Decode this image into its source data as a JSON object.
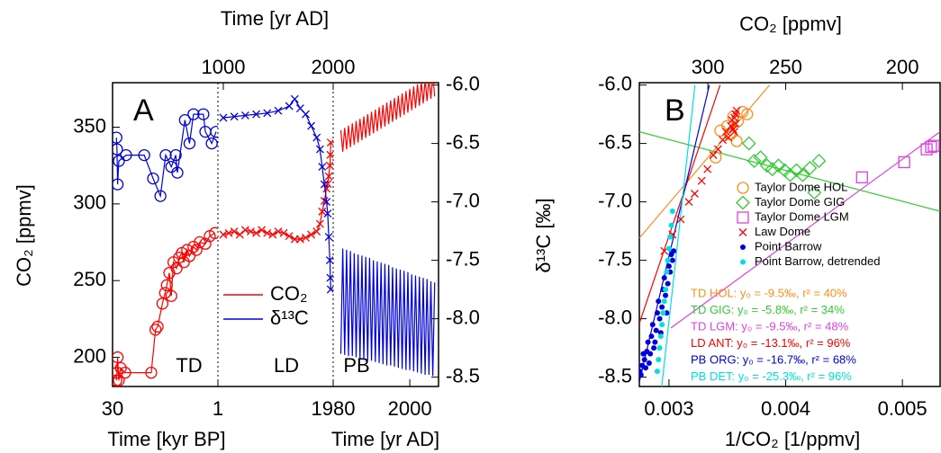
{
  "chart_data": [
    {
      "type": "line",
      "panel_label": "A",
      "ylabel": "CO₂ [ppmv]",
      "ylim": [
        181,
        379
      ],
      "yticks": [
        200,
        250,
        300,
        350
      ],
      "y2lim": [
        -8.58,
        -5.98
      ],
      "y2ticks": [
        {
          "value": -6,
          "label": "-6.0"
        },
        -6.5,
        {
          "value": -7,
          "label": "-7.0"
        },
        -7.5,
        {
          "value": -8,
          "label": "-8.0"
        },
        -8.5
      ],
      "panels": [
        {
          "label": "TD",
          "xscale": "log",
          "xlim": [
            30,
            1
          ],
          "xticks": [
            30,
            1
          ],
          "xlabel": "Time [kyr BP]"
        },
        {
          "label": "LD",
          "xscale": "linear",
          "xlim": [
            951,
            2000
          ],
          "xticks_top": [
            1000,
            2000
          ],
          "xlabel_top": "Time [yr AD]"
        },
        {
          "label": "PB",
          "xscale": "linear",
          "xlim": [
            1980,
            2007.5
          ],
          "xticks": [
            1980,
            2000
          ],
          "xlabel": "Time [yr AD]"
        }
      ],
      "series": [
        {
          "name": "CO₂",
          "color": "#ff0000",
          "axis": "y",
          "markers": [
            "circle",
            "x",
            "none"
          ],
          "data": [
            {
              "x": [
                26.5,
                26,
                25.5,
                24.5,
                23,
                20,
                8.6,
                7.5,
                7,
                6,
                5.5,
                5.2,
                4.8,
                4.5,
                4.2,
                3.8,
                3.5,
                3.2,
                3,
                2.7,
                2.5,
                2.2,
                2,
                1.8,
                1.5,
                1.3,
                1.1
              ],
              "values": [
                185,
                190,
                200,
                185,
                193,
                190,
                190,
                218,
                220,
                235,
                242,
                247,
                255,
                240,
                262,
                258,
                265,
                268,
                262,
                270,
                266,
                272,
                270,
                275,
                274,
                279,
                281
              ]
            },
            {
              "x": [
                1000,
                1050,
                1100,
                1150,
                1200,
                1250,
                1300,
                1350,
                1400,
                1450,
                1500,
                1550,
                1600,
                1650,
                1700,
                1750,
                1800,
                1850,
                1880,
                1900,
                1920,
                1940,
                1950,
                1960,
                1970,
                1975,
                1978
              ],
              "values": [
                280,
                281,
                282,
                280,
                283,
                282,
                281,
                283,
                281,
                280,
                282,
                281,
                279,
                277,
                277,
                278,
                280,
                282,
                287,
                295,
                302,
                310,
                313,
                318,
                325,
                332,
                340
              ]
            },
            {
              "x": [
                1982,
                1982.5,
                1983,
                1983.5,
                1984,
                1984.5,
                1985,
                1985.5,
                1986,
                1986.5,
                1987,
                1987.5,
                1988,
                1988.5,
                1989,
                1989.5,
                1990,
                1990.5,
                1991,
                1991.5,
                1992,
                1992.5,
                1993,
                1993.5,
                1994,
                1994.5,
                1995,
                1995.5,
                1996,
                1996.5,
                1997,
                1997.5,
                1998,
                1998.5,
                1999,
                1999.5,
                2000,
                2000.5,
                2001,
                2001.5,
                2002,
                2002.5,
                2003,
                2003.5,
                2004,
                2004.5,
                2005,
                2005.5,
                2006,
                2006.5
              ],
              "values": [
                348,
                334,
                349.5,
                335.5,
                351,
                337,
                352.5,
                338.5,
                354,
                340,
                355.5,
                341.5,
                357,
                343,
                358.5,
                344.5,
                360,
                346,
                361.5,
                347.5,
                363,
                349,
                364.5,
                350.5,
                366,
                352,
                367.5,
                353.5,
                369,
                355,
                370.5,
                356.5,
                372,
                358,
                373.5,
                359.5,
                375,
                361,
                376.5,
                362.5,
                378,
                364,
                379.5,
                365.5,
                381,
                367,
                382.5,
                368.5,
                384,
                370
              ]
            }
          ]
        },
        {
          "name": "δ¹³C",
          "color": "#0000dd",
          "axis": "y2",
          "markers": [
            "circle",
            "x",
            "none"
          ],
          "data": [
            {
              "x": [
                26.5,
                26,
                25.5,
                24.5,
                19.4,
                10.8,
                8.1,
                6.4,
                5.4,
                4.5,
                3.9,
                3.7,
                2.9,
                2.5,
                2.2,
                1.6,
                1.5,
                1.22,
                1.06
              ],
              "values": [
                -6.45,
                -6.55,
                -6.85,
                -6.65,
                -6.6,
                -6.6,
                -6.8,
                -6.95,
                -6.6,
                -6.7,
                -6.6,
                -6.75,
                -6.3,
                -6.5,
                -6.25,
                -6.25,
                -6.4,
                -6.5,
                -6.4
              ]
            },
            {
              "x": [
                1000,
                1100,
                1200,
                1300,
                1400,
                1500,
                1600,
                1650,
                1700,
                1750,
                1800,
                1850,
                1880,
                1900,
                1920,
                1940,
                1950,
                1960,
                1970,
                1975,
                1978
              ],
              "values": [
                -6.28,
                -6.27,
                -6.26,
                -6.25,
                -6.24,
                -6.22,
                -6.18,
                -6.12,
                -6.2,
                -6.25,
                -6.35,
                -6.45,
                -6.55,
                -6.7,
                -6.85,
                -7.0,
                -7.1,
                -7.3,
                -7.5,
                -7.65,
                -7.75
              ]
            },
            {
              "x": [
                1982,
                1982.5,
                1983,
                1983.5,
                1984,
                1984.5,
                1985,
                1985.5,
                1986,
                1986.5,
                1987,
                1987.5,
                1988,
                1988.5,
                1989,
                1989.5,
                1990,
                1990.5,
                1991,
                1991.5,
                1992,
                1992.5,
                1993,
                1993.5,
                1994,
                1994.5,
                1995,
                1995.5,
                1996,
                1996.5,
                1997,
                1997.5,
                1998,
                1998.5,
                1999,
                1999.5,
                2000,
                2000.5,
                2001,
                2001.5,
                2002,
                2002.5,
                2003,
                2003.5,
                2004,
                2004.5,
                2005,
                2005.5,
                2006,
                2006.5
              ],
              "values": [
                -8.3,
                -7.4,
                -8.31,
                -7.41,
                -8.32,
                -7.42,
                -8.32,
                -7.44,
                -8.33,
                -7.45,
                -8.34,
                -7.46,
                -8.35,
                -7.47,
                -8.36,
                -7.48,
                -8.36,
                -7.5,
                -8.37,
                -7.51,
                -8.38,
                -7.52,
                -8.39,
                -7.53,
                -8.4,
                -7.54,
                -8.4,
                -7.56,
                -8.41,
                -7.57,
                -8.42,
                -7.58,
                -8.43,
                -7.59,
                -8.44,
                -7.6,
                -8.44,
                -7.62,
                -8.45,
                -7.63,
                -8.46,
                -7.64,
                -8.47,
                -7.65,
                -8.48,
                -7.66,
                -8.48,
                -7.68,
                -8.49,
                -7.69
              ]
            }
          ]
        }
      ]
    },
    {
      "type": "scatter",
      "panel_label": "B",
      "xlabel": "1/CO₂ [1/ppmv]",
      "x2label": "CO₂ [ppmv]",
      "ylabel": "δ¹³C [‰]",
      "xlim": [
        0.002746,
        0.005323
      ],
      "xticks": [
        0.003,
        0.004,
        0.005
      ],
      "x2ticks": [
        300,
        250,
        200
      ],
      "ylim": [
        -8.58,
        -5.98
      ],
      "yticks": [
        {
          "value": -6,
          "label": "-6.0"
        },
        -6.5,
        {
          "value": -7,
          "label": "-7.0"
        },
        -7.5,
        {
          "value": -8,
          "label": "-8.0"
        },
        -8.5
      ],
      "series": [
        {
          "name": "Taylor Dome HOL",
          "color": "#ff8c1a",
          "marker": "circle",
          "x": [
            0.0034,
            0.00344,
            0.0035,
            0.00353,
            0.00355,
            0.00359,
            0.00363,
            0.00367,
            0.00358,
            0.00352
          ],
          "values": [
            -6.62,
            -6.39,
            -6.35,
            -6.42,
            -6.27,
            -6.31,
            -6.23,
            -6.25,
            -6.48,
            -6.42
          ]
        },
        {
          "name": "Taylor Dome GIG",
          "color": "#33cc33",
          "marker": "diamond",
          "x": [
            0.003685,
            0.00373,
            0.003785,
            0.00384,
            0.003885,
            0.003938,
            0.003992,
            0.004038,
            0.004092,
            0.004146,
            0.004208,
            0.004285,
            0.004246
          ],
          "values": [
            -6.5,
            -6.65,
            -6.62,
            -6.69,
            -6.72,
            -6.69,
            -6.73,
            -6.77,
            -6.73,
            -6.77,
            -6.71,
            -6.65,
            -6.92
          ]
        },
        {
          "name": "Taylor Dome LGM",
          "color": "#e040e0",
          "marker": "square",
          "x": [
            0.004654,
            0.005015,
            0.005208,
            0.005246,
            0.005269
          ],
          "values": [
            -6.79,
            -6.66,
            -6.55,
            -6.53,
            -6.52
          ]
        },
        {
          "name": "Law Dome",
          "color": "#ff0000",
          "marker": "x",
          "x": [
            0.00296,
            0.00303,
            0.0031,
            0.00317,
            0.00322,
            0.00328,
            0.00333,
            0.00338,
            0.00342,
            0.00346,
            0.00349,
            0.00351,
            0.00353,
            0.00354,
            0.00355,
            0.00356,
            0.00357,
            0.00357,
            0.00358,
            0.00356
          ],
          "values": [
            -7.42,
            -7.28,
            -7.15,
            -7.0,
            -6.93,
            -6.82,
            -6.72,
            -6.6,
            -6.55,
            -6.47,
            -6.4,
            -6.45,
            -6.35,
            -6.3,
            -6.38,
            -6.28,
            -6.25,
            -6.33,
            -6.22,
            -6.4
          ]
        },
        {
          "name": "Point Barrow",
          "color": "#0000dd",
          "marker": "dot",
          "x": [
            0.00275,
            0.00277,
            0.00279,
            0.00278,
            0.00281,
            0.00283,
            0.00282,
            0.00285,
            0.00287,
            0.00286,
            0.00289,
            0.0029,
            0.00292,
            0.00291,
            0.00294,
            0.00295,
            0.00297,
            0.00296,
            0.00299,
            0.003,
            0.00301,
            0.00302,
            0.00303,
            0.00304,
            0.0028,
            0.00284,
            0.00288,
            0.00293,
            0.00298,
            0.00276
          ],
          "values": [
            -8.45,
            -8.4,
            -8.35,
            -8.3,
            -8.28,
            -8.38,
            -8.2,
            -8.15,
            -8.25,
            -8.05,
            -8.1,
            -7.95,
            -8.0,
            -7.85,
            -7.9,
            -7.75,
            -7.8,
            -7.65,
            -7.7,
            -7.55,
            -7.6,
            -7.45,
            -7.5,
            -7.42,
            -8.42,
            -8.3,
            -8.2,
            -8.12,
            -7.95,
            -8.48
          ]
        },
        {
          "name": "Point Barrow, detrended",
          "color": "#00e0e0",
          "marker": "dot",
          "x": [
            0.0029,
            0.00291,
            0.00292,
            0.00293,
            0.00294,
            0.00295,
            0.00296,
            0.00297,
            0.00298,
            0.00299,
            0.003,
            0.00301,
            0.00302,
            0.00303
          ],
          "values": [
            -8.45,
            -8.35,
            -8.25,
            -8.15,
            -8.05,
            -7.95,
            -7.85,
            -7.75,
            -7.6,
            -7.5,
            -7.4,
            -7.3,
            -7.2,
            -7.08
          ]
        }
      ],
      "fits": [
        {
          "color": "#ff8c1a",
          "x": [
            0.002746,
            0.003862
          ],
          "values": [
            -7.31,
            -6.0
          ]
        },
        {
          "color": "#33cc33",
          "x": [
            0.002746,
            0.005323
          ],
          "values": [
            -6.4,
            -7.08
          ]
        },
        {
          "color": "#e040e0",
          "x": [
            0.003015,
            0.005323
          ],
          "values": [
            -8.08,
            -6.4
          ]
        },
        {
          "color": "#ff0000",
          "x": [
            0.002746,
            0.003438
          ],
          "values": [
            -8.04,
            -6.0
          ]
        },
        {
          "color": "#0000dd",
          "x": [
            0.002746,
            0.003346
          ],
          "values": [
            -8.54,
            -6.0
          ]
        },
        {
          "color": "#00e0e0",
          "x": [
            0.002938,
            0.003223
          ],
          "values": [
            -8.58,
            -6.0
          ]
        }
      ],
      "annotations": [
        {
          "text": "TD HOL: y₀ = -9.5‰, r² = 40%",
          "color": "#ff8c1a"
        },
        {
          "text": "TD GIG: y₀ = -5.8‰, r² = 34%",
          "color": "#33cc33"
        },
        {
          "text": "TD LGM: y₀ = -9.5‰, r² = 48%",
          "color": "#e040e0"
        },
        {
          "text": "LD ANT: y₀ = -13.1‰, r² = 96%",
          "color": "#ff0000"
        },
        {
          "text": "PB ORG: y₀ = -16.7‰, r² = 68%",
          "color": "#0000dd"
        },
        {
          "text": "PB DET: y₀ = -25.3‰, r² = 96%",
          "color": "#00e0e0"
        }
      ]
    }
  ]
}
